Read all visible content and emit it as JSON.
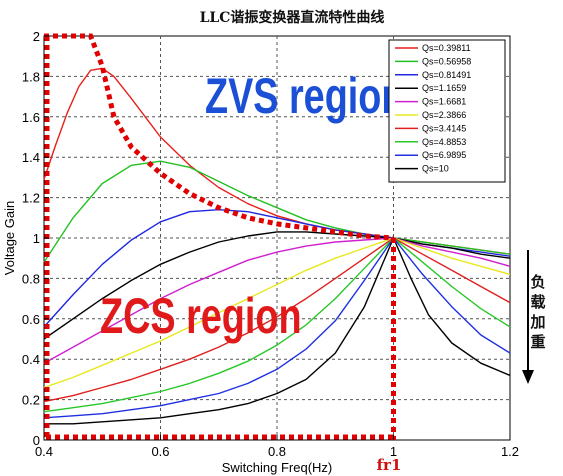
{
  "chart_data": {
    "type": "line",
    "title": "LLC谐振变换器直流特性曲线",
    "xlabel": "Switching Freq(Hz)",
    "ylabel": "Voltage Gain",
    "xlim": [
      0.4,
      1.2
    ],
    "ylim": [
      0,
      2
    ],
    "xticks": [
      0.4,
      0.6,
      0.8,
      1,
      1.2
    ],
    "xtick_labels": [
      "0.4",
      "0.6",
      "0.8",
      "1",
      "1.2"
    ],
    "yticks": [
      0,
      0.2,
      0.4,
      0.6,
      0.8,
      1,
      1.2,
      1.4,
      1.6,
      1.8,
      2
    ],
    "ytick_labels": [
      "0",
      "0.2",
      "0.4",
      "0.6",
      "0.8",
      "1",
      "1.2",
      "1.4",
      "1.6",
      "1.8",
      "2"
    ],
    "grid": true,
    "legend_position": "top-right",
    "series": [
      {
        "name": "Qs=0.39811",
        "color": "#e8201a",
        "x": [
          0.4,
          0.42,
          0.44,
          0.46,
          0.48,
          0.5,
          0.52,
          0.55,
          0.6,
          0.65,
          0.7,
          0.75,
          0.8,
          0.85,
          0.9,
          0.95,
          1,
          1.05,
          1.1,
          1.15,
          1.2
        ],
        "y": [
          1.29,
          1.46,
          1.62,
          1.75,
          1.83,
          1.84,
          1.8,
          1.69,
          1.5,
          1.36,
          1.25,
          1.17,
          1.11,
          1.07,
          1.04,
          1.02,
          1.0,
          0.98,
          0.96,
          0.94,
          0.92
        ]
      },
      {
        "name": "Qs=0.56958",
        "color": "#22c122",
        "x": [
          0.4,
          0.45,
          0.5,
          0.55,
          0.6,
          0.65,
          0.7,
          0.75,
          0.8,
          0.85,
          0.9,
          0.95,
          1,
          1.05,
          1.1,
          1.15,
          1.2
        ],
        "y": [
          0.88,
          1.1,
          1.27,
          1.36,
          1.38,
          1.35,
          1.28,
          1.21,
          1.15,
          1.09,
          1.05,
          1.02,
          1.0,
          0.98,
          0.96,
          0.94,
          0.92
        ]
      },
      {
        "name": "Qs=0.81491",
        "color": "#2028e0",
        "x": [
          0.4,
          0.45,
          0.5,
          0.55,
          0.6,
          0.65,
          0.7,
          0.75,
          0.8,
          0.85,
          0.9,
          0.95,
          1,
          1.05,
          1.1,
          1.15,
          1.2
        ],
        "y": [
          0.56,
          0.72,
          0.87,
          0.99,
          1.08,
          1.13,
          1.14,
          1.13,
          1.1,
          1.07,
          1.04,
          1.02,
          1.0,
          0.97,
          0.95,
          0.93,
          0.91
        ]
      },
      {
        "name": "Qs=1.1659",
        "color": "#000000",
        "x": [
          0.4,
          0.45,
          0.5,
          0.55,
          0.6,
          0.65,
          0.7,
          0.75,
          0.8,
          0.85,
          0.9,
          0.95,
          1,
          1.05,
          1.1,
          1.15,
          1.2
        ],
        "y": [
          0.5,
          0.6,
          0.7,
          0.79,
          0.87,
          0.93,
          0.98,
          1.01,
          1.03,
          1.03,
          1.02,
          1.01,
          1.0,
          0.97,
          0.95,
          0.92,
          0.9
        ]
      },
      {
        "name": "Qs=1.6681",
        "color": "#d020d0",
        "x": [
          0.4,
          0.45,
          0.5,
          0.55,
          0.6,
          0.65,
          0.7,
          0.75,
          0.8,
          0.85,
          0.9,
          0.95,
          1,
          1.05,
          1.1,
          1.15,
          1.2
        ],
        "y": [
          0.38,
          0.46,
          0.54,
          0.62,
          0.7,
          0.77,
          0.83,
          0.89,
          0.93,
          0.96,
          0.98,
          0.99,
          1.0,
          0.96,
          0.93,
          0.9,
          0.86
        ]
      },
      {
        "name": "Qs=2.3866",
        "color": "#e8e820",
        "x": [
          0.4,
          0.45,
          0.5,
          0.55,
          0.6,
          0.65,
          0.7,
          0.75,
          0.8,
          0.85,
          0.9,
          0.95,
          1,
          1.05,
          1.1,
          1.15,
          1.2
        ],
        "y": [
          0.26,
          0.31,
          0.37,
          0.43,
          0.49,
          0.56,
          0.63,
          0.7,
          0.77,
          0.84,
          0.9,
          0.95,
          1.0,
          0.95,
          0.9,
          0.86,
          0.82
        ]
      },
      {
        "name": "Qs=3.4145",
        "color": "#e02020",
        "x": [
          0.4,
          0.45,
          0.5,
          0.55,
          0.6,
          0.65,
          0.7,
          0.75,
          0.8,
          0.85,
          0.9,
          0.95,
          1,
          1.05,
          1.1,
          1.15,
          1.2
        ],
        "y": [
          0.19,
          0.22,
          0.26,
          0.3,
          0.35,
          0.4,
          0.46,
          0.53,
          0.61,
          0.7,
          0.8,
          0.9,
          1.0,
          0.92,
          0.84,
          0.76,
          0.68
        ]
      },
      {
        "name": "Qs=4.8853",
        "color": "#28c828",
        "x": [
          0.4,
          0.45,
          0.5,
          0.55,
          0.6,
          0.65,
          0.7,
          0.75,
          0.8,
          0.85,
          0.9,
          0.95,
          1,
          1.05,
          1.1,
          1.15,
          1.2
        ],
        "y": [
          0.14,
          0.16,
          0.18,
          0.21,
          0.24,
          0.28,
          0.33,
          0.39,
          0.47,
          0.57,
          0.7,
          0.85,
          1.0,
          0.88,
          0.76,
          0.65,
          0.56
        ]
      },
      {
        "name": "Qs=6.9895",
        "color": "#2030e0",
        "x": [
          0.4,
          0.45,
          0.5,
          0.55,
          0.6,
          0.65,
          0.7,
          0.75,
          0.8,
          0.85,
          0.9,
          0.95,
          1,
          1.05,
          1.1,
          1.15,
          1.2
        ],
        "y": [
          0.11,
          0.12,
          0.13,
          0.15,
          0.17,
          0.2,
          0.23,
          0.28,
          0.35,
          0.45,
          0.59,
          0.79,
          1.0,
          0.82,
          0.66,
          0.52,
          0.43
        ]
      },
      {
        "name": "Qs=10",
        "color": "#000000",
        "x": [
          0.4,
          0.45,
          0.5,
          0.55,
          0.6,
          0.65,
          0.7,
          0.75,
          0.8,
          0.85,
          0.9,
          0.95,
          1,
          1.03,
          1.06,
          1.1,
          1.15,
          1.2
        ],
        "y": [
          0.08,
          0.08,
          0.09,
          0.1,
          0.11,
          0.13,
          0.15,
          0.18,
          0.23,
          0.3,
          0.43,
          0.66,
          1.0,
          0.8,
          0.62,
          0.48,
          0.38,
          0.32
        ]
      }
    ],
    "boundary": {
      "color": "#e00000",
      "x": [
        0.4,
        0.48,
        0.5,
        0.52,
        0.55,
        0.6,
        0.65,
        0.7,
        0.75,
        0.8,
        0.85,
        0.9,
        0.95,
        1
      ],
      "y": [
        2.0,
        2.0,
        1.85,
        1.6,
        1.45,
        1.32,
        1.22,
        1.15,
        1.1,
        1.07,
        1.05,
        1.03,
        1.01,
        1.0
      ]
    },
    "fr1_x": 1,
    "annotations": {
      "zvs": "ZVS region",
      "zcs": "ZCS region",
      "fr1": "fr1",
      "side_chars": [
        "负",
        "载",
        "加",
        "重"
      ]
    }
  }
}
